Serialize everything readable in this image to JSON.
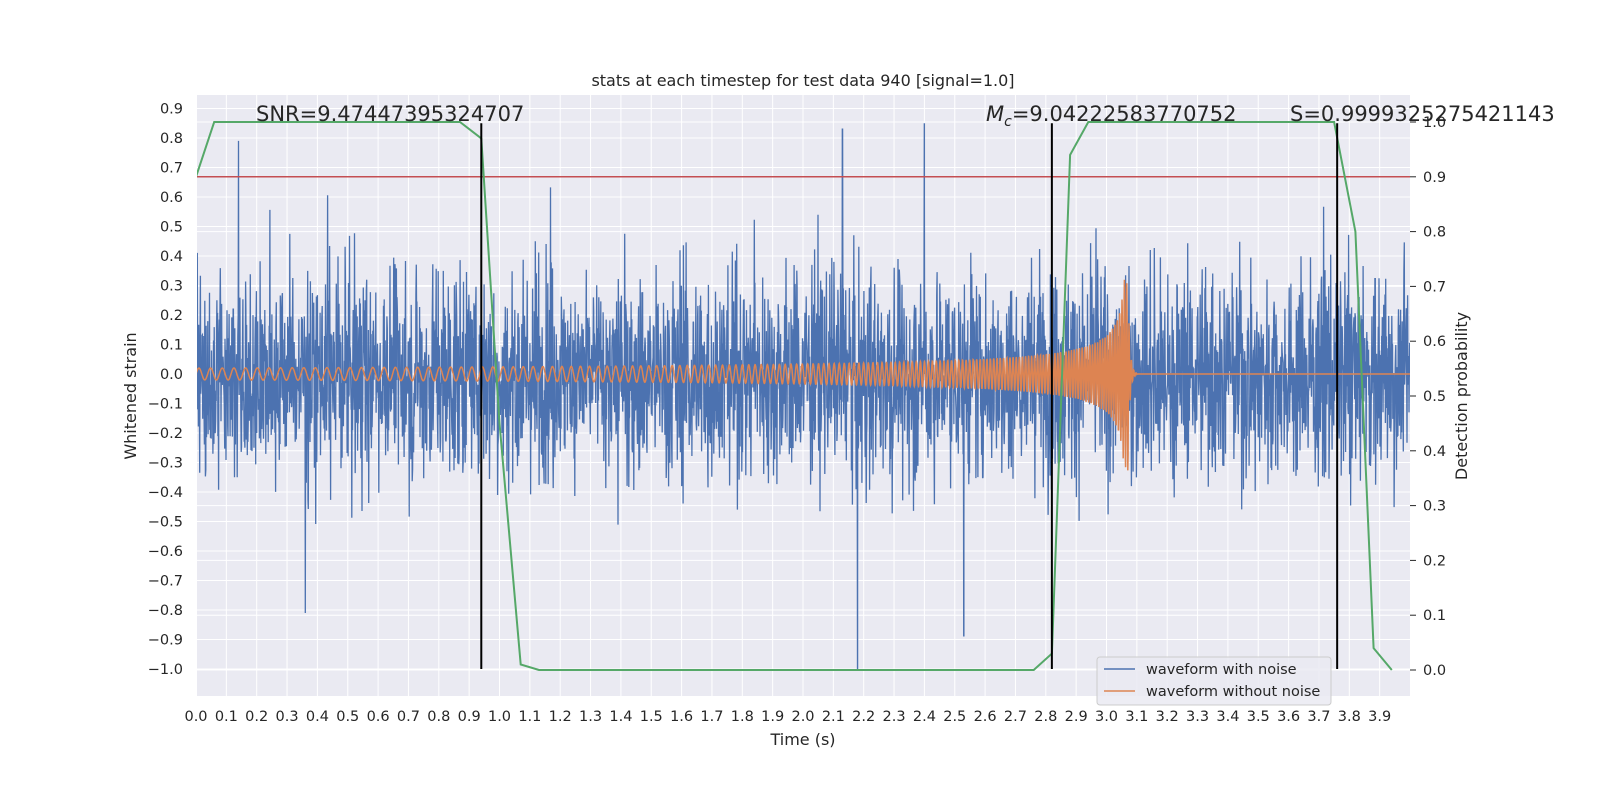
{
  "chart_data": {
    "type": "line",
    "title": "stats at each timestep for test data 940 [signal=1.0]",
    "xlabel": "Time (s)",
    "ylabel": "Whitened strain",
    "y2label": "Detection probability",
    "xlim": [
      0.0,
      4.0
    ],
    "ylim": [
      -1.09,
      0.95
    ],
    "y2lim": [
      -0.05,
      1.02
    ],
    "grid": true,
    "legend_position": "lower-right",
    "x_ticks": [
      "0.0",
      "0.1",
      "0.2",
      "0.3",
      "0.4",
      "0.5",
      "0.6",
      "0.7",
      "0.8",
      "0.9",
      "1.0",
      "1.1",
      "1.2",
      "1.3",
      "1.4",
      "1.5",
      "1.6",
      "1.7",
      "1.8",
      "1.9",
      "2.0",
      "2.1",
      "2.2",
      "2.3",
      "2.4",
      "2.5",
      "2.6",
      "2.7",
      "2.8",
      "2.9",
      "3.0",
      "3.1",
      "3.2",
      "3.3",
      "3.4",
      "3.5",
      "3.6",
      "3.7",
      "3.8",
      "3.9"
    ],
    "y_ticks": [
      "0.9",
      "0.8",
      "0.7",
      "0.6",
      "0.5",
      "0.4",
      "0.3",
      "0.2",
      "0.1",
      "0.0",
      "−0.1",
      "−0.2",
      "−0.3",
      "−0.4",
      "−0.5",
      "−0.6",
      "−0.7",
      "−0.8",
      "−0.9",
      "−1.0"
    ],
    "y2_ticks": [
      "1.0",
      "0.9",
      "0.8",
      "0.7",
      "0.6",
      "0.5",
      "0.4",
      "0.3",
      "0.2",
      "0.1",
      "0.0"
    ],
    "annotations": {
      "snr": "SNR=9.47447395324707",
      "mc_symbol": "M",
      "mc_subscript": "c",
      "mc_value": "=9.04222583770752",
      "s": "S=0.9999325275421143"
    },
    "series": [
      {
        "name": "waveform with noise",
        "color": "#4c72b0",
        "kind": "noisy-strain",
        "x_range": [
          0.0,
          4.0
        ],
        "amplitude_typical": 0.4,
        "peaks": [
          {
            "x": 0.14,
            "y": 0.79
          },
          {
            "x": 0.36,
            "y": -0.81
          },
          {
            "x": 2.13,
            "y": 0.83
          },
          {
            "x": 2.18,
            "y": -1.0
          },
          {
            "x": 2.4,
            "y": 0.85
          },
          {
            "x": 2.53,
            "y": -0.89
          }
        ]
      },
      {
        "name": "waveform without noise",
        "color": "#dd8452",
        "kind": "chirp",
        "x_range": [
          0.0,
          4.0
        ],
        "merger_time": 3.07,
        "start_amplitude": 0.02,
        "peak_amplitude": 0.35,
        "start_frequency_hz": 26,
        "merger_frequency_hz": 130
      },
      {
        "color": "#55a868",
        "axis": "right",
        "x": [
          0.0,
          0.06,
          0.12,
          0.5,
          0.87,
          0.94,
          1.0,
          1.07,
          1.13,
          2.1,
          2.7,
          2.76,
          2.82,
          2.88,
          2.94,
          3.75,
          3.82,
          3.88,
          3.94
        ],
        "y": [
          0.9,
          1.0,
          1.0,
          1.0,
          1.0,
          0.97,
          0.45,
          0.01,
          0.0,
          0.0,
          0.0,
          0.0,
          0.03,
          0.94,
          1.0,
          1.0,
          0.8,
          0.04,
          0.0
        ]
      }
    ],
    "threshold": {
      "axis": "right",
      "y": 0.9,
      "color": "#c44e52"
    },
    "vertical_markers": [
      0.94,
      2.82,
      3.76
    ],
    "marker_color": "#000000",
    "marker_range": [
      -1.0,
      0.85
    ]
  }
}
